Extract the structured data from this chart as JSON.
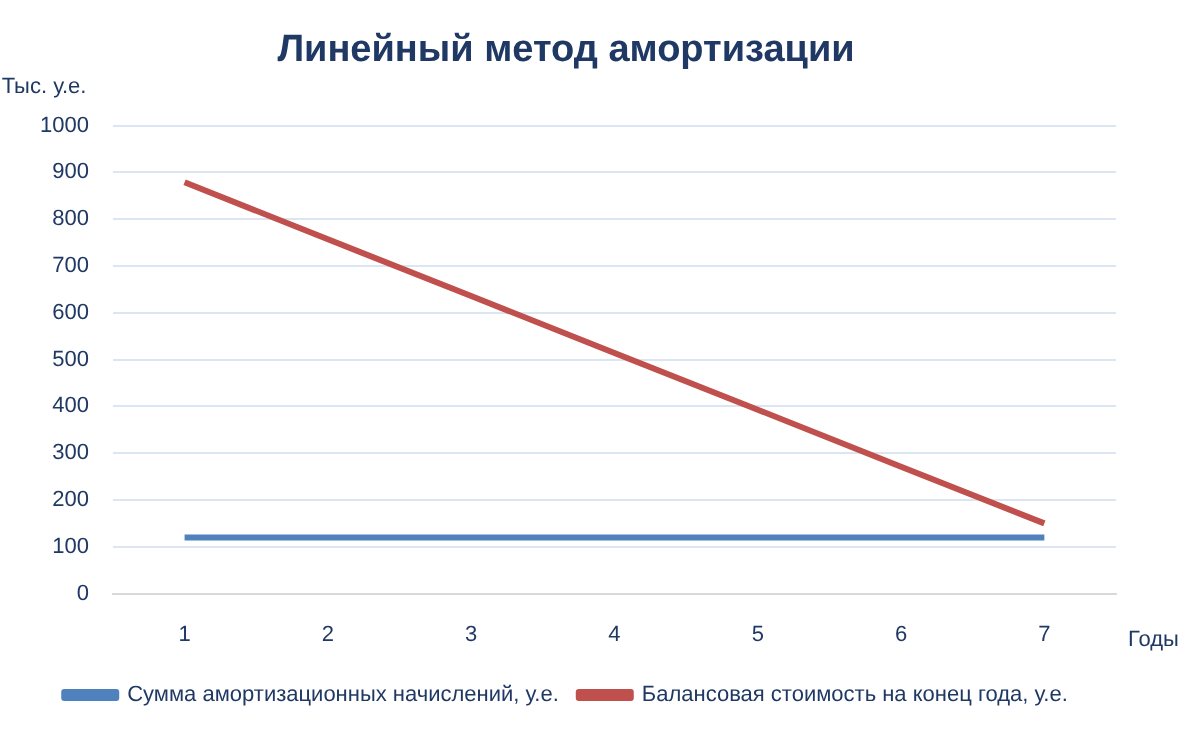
{
  "chart_data": {
    "type": "line",
    "title": "Линейный метод амортизации",
    "ylabel": "Тыс. у.е.",
    "xlabel": "Годы",
    "categories": [
      "1",
      "2",
      "3",
      "4",
      "5",
      "6",
      "7"
    ],
    "series": [
      {
        "name": "Сумма амортизационных начислений, у.е.",
        "color": "#4f81bd",
        "values": [
          120,
          120,
          120,
          120,
          120,
          120,
          120
        ]
      },
      {
        "name": "Балансовая стоимость на конец года, у.е.",
        "color": "#c0504d",
        "values": [
          879,
          757,
          636,
          514,
          393,
          271,
          150
        ]
      }
    ],
    "ylim": [
      0,
      1000
    ],
    "yticks": [
      0,
      100,
      200,
      300,
      400,
      500,
      600,
      700,
      800,
      900,
      1000
    ],
    "grid": "y",
    "legend": "bottom",
    "marker": "none",
    "line_style": "solid"
  }
}
